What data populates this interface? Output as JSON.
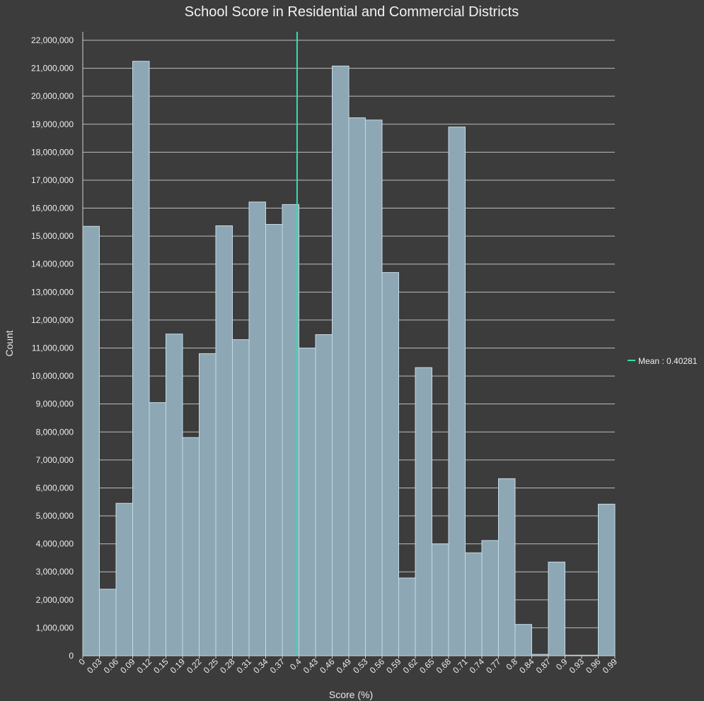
{
  "chart_data": {
    "type": "bar",
    "title": "School Score in Residential and Commercial Districts",
    "xlabel": "Score (%)",
    "ylabel": "Count",
    "ylim": [
      0,
      22000000
    ],
    "xlim": [
      0,
      1
    ],
    "grid": true,
    "bin_edges": [
      0,
      0.03125,
      0.0625,
      0.09375,
      0.125,
      0.15625,
      0.1875,
      0.21875,
      0.25,
      0.28125,
      0.3125,
      0.34375,
      0.375,
      0.40625,
      0.4375,
      0.46875,
      0.5,
      0.53125,
      0.5625,
      0.59375,
      0.625,
      0.65625,
      0.6875,
      0.71875,
      0.75,
      0.78125,
      0.8125,
      0.84375,
      0.875,
      0.90625,
      0.9375,
      0.96875,
      1
    ],
    "values": [
      15350000,
      2380000,
      5450000,
      21250000,
      9050000,
      11500000,
      7800000,
      10800000,
      15370000,
      11300000,
      16220000,
      15420000,
      16130000,
      11000000,
      11480000,
      21080000,
      19230000,
      19150000,
      13700000,
      2780000,
      10300000,
      4000000,
      18900000,
      3680000,
      4120000,
      6330000,
      1120000,
      50000,
      3350000,
      20000,
      20000,
      5420000
    ],
    "yticks": [
      0,
      1000000,
      2000000,
      3000000,
      4000000,
      5000000,
      6000000,
      7000000,
      8000000,
      9000000,
      10000000,
      11000000,
      12000000,
      13000000,
      14000000,
      15000000,
      16000000,
      17000000,
      18000000,
      19000000,
      20000000,
      21000000,
      22000000
    ],
    "ytick_labels": [
      "0",
      "1,000,000",
      "2,000,000",
      "3,000,000",
      "4,000,000",
      "5,000,000",
      "6,000,000",
      "7,000,000",
      "8,000,000",
      "9,000,000",
      "10,000,000",
      "11,000,000",
      "12,000,000",
      "13,000,000",
      "14,000,000",
      "15,000,000",
      "16,000,000",
      "17,000,000",
      "18,000,000",
      "19,000,000",
      "20,000,000",
      "21,000,000",
      "22,000,000"
    ],
    "xtick_labels": [
      "0",
      "0.03",
      "0.06",
      "0.09",
      "0.12",
      "0.15",
      "0.19",
      "0.22",
      "0.25",
      "0.28",
      "0.31",
      "0.34",
      "0.37",
      "0.4",
      "0.43",
      "0.46",
      "0.49",
      "0.53",
      "0.56",
      "0.59",
      "0.62",
      "0.65",
      "0.68",
      "0.71",
      "0.74",
      "0.77",
      "0.8",
      "0.84",
      "0.87",
      "0.9",
      "0.93",
      "0.96",
      "0.99"
    ],
    "mean": 0.40281,
    "legend": {
      "label": "Mean : 0.40281",
      "position": "right"
    },
    "colors": {
      "background": "#3c3c3c",
      "bar_fill": "#8ea7b4",
      "bar_stroke": "#c4dbe6",
      "grid": "#bdbdbd",
      "mean_line": "#2ee0b2",
      "axis": "#d0d0d0"
    }
  }
}
